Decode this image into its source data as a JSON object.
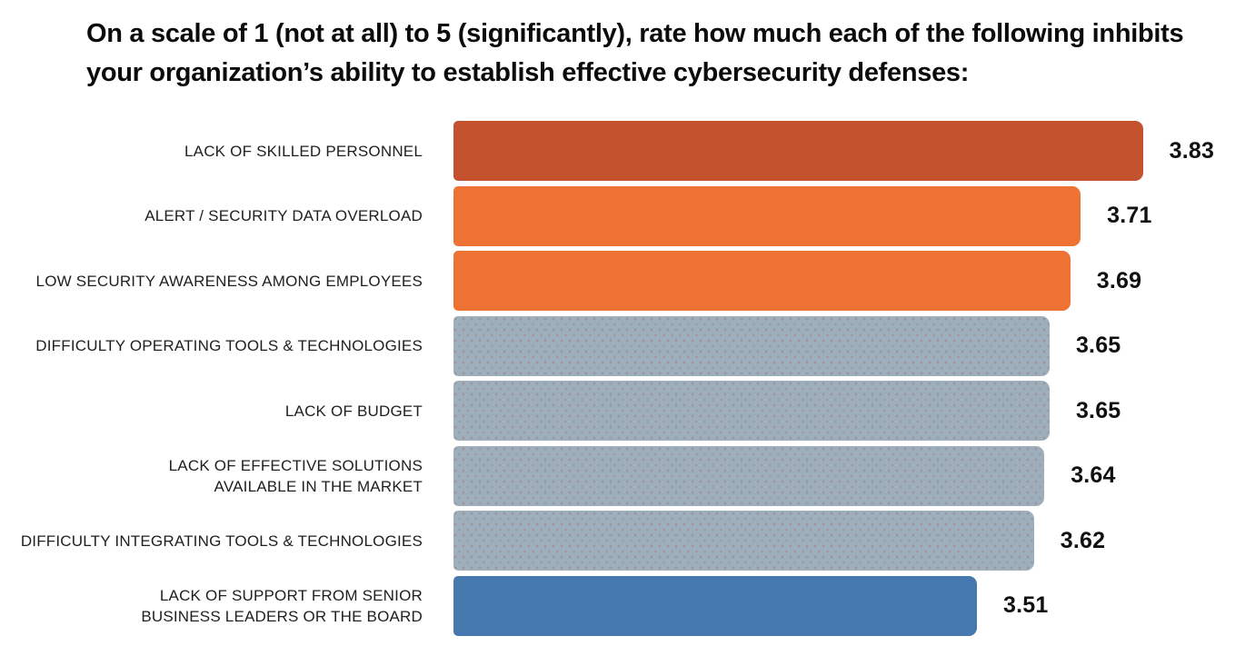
{
  "title": {
    "line1": "On a scale of 1 (not at all) to 5 (significantly), rate how much each of the following inhibits",
    "line2": "your organization’s ability to establish effective cybersecurity defenses:"
  },
  "chart_data": {
    "type": "bar",
    "orientation": "horizontal",
    "title": "On a scale of 1 (not at all) to 5 (significantly), rate how much each of the following inhibits your organization’s ability to establish effective cybersecurity defenses:",
    "categories": [
      "LACK OF SKILLED PERSONNEL",
      "ALERT / SECURITY DATA OVERLOAD",
      "LOW SECURITY AWARENESS AMONG EMPLOYEES",
      "DIFFICULTY OPERATING TOOLS & TECHNOLOGIES",
      "LACK OF BUDGET",
      "LACK OF EFFECTIVE SOLUTIONS\nAVAILABLE IN THE MARKET",
      "DIFFICULTY INTEGRATING TOOLS & TECHNOLOGIES",
      "LACK OF SUPPORT FROM SENIOR\nBUSINESS LEADERS OR THE BOARD"
    ],
    "values": [
      3.83,
      3.71,
      3.69,
      3.65,
      3.65,
      3.64,
      3.62,
      3.51
    ],
    "value_labels": [
      "3.83",
      "3.71",
      "3.69",
      "3.65",
      "3.65",
      "3.64",
      "3.62",
      "3.51"
    ],
    "bar_colors": [
      "#C5522E",
      "#EE7233",
      "#EE7233",
      "#9DAEBD",
      "#9DAEBD",
      "#9DAEBD",
      "#9DAEBD",
      "#4478AE"
    ],
    "dotted": [
      false,
      false,
      false,
      true,
      true,
      true,
      true,
      false
    ],
    "xlabel": "",
    "ylabel": "",
    "xlim": [
      2.5,
      3.85
    ],
    "scale_min_label": "1 (not at all)",
    "scale_max_label": "5 (significantly)",
    "grid": false,
    "legend": false,
    "value_label_color": "#101010",
    "label_color": "#1f1f1f"
  }
}
